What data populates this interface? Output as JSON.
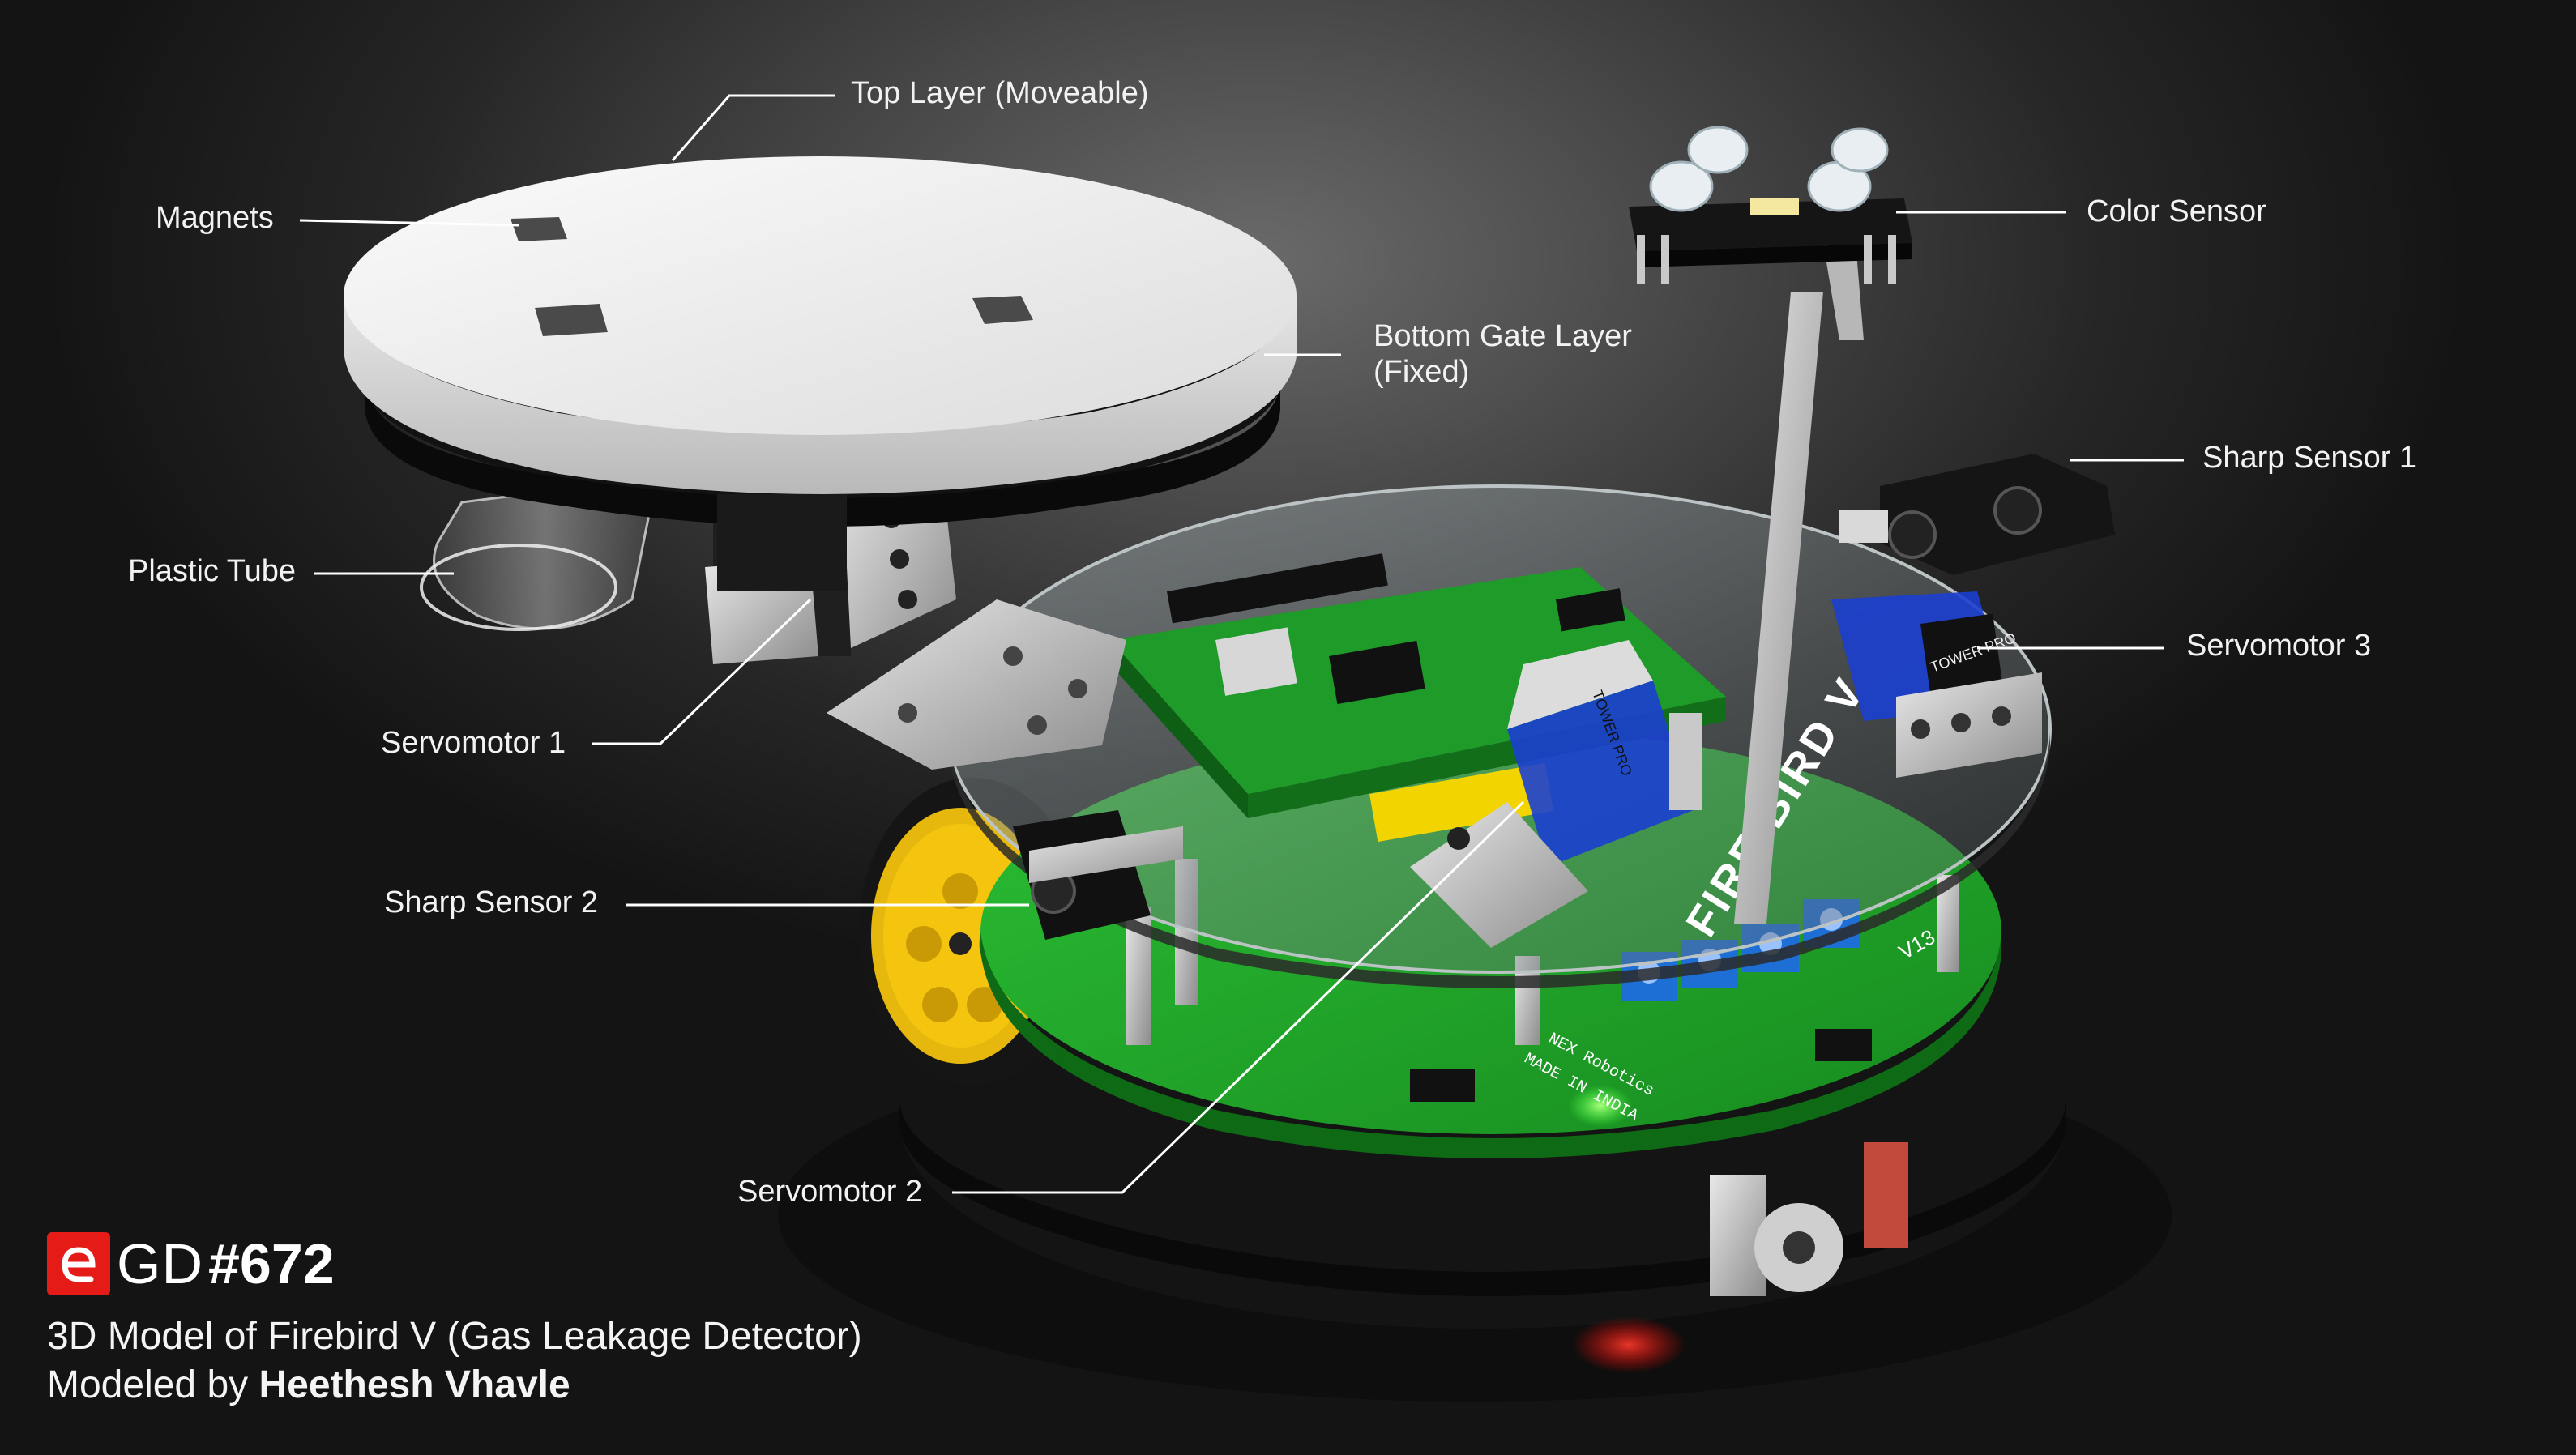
{
  "branding": {
    "logo_letter": "e",
    "prefix": "GD",
    "number": "#672",
    "subtitle": "3D Model of Firebird V (Gas Leakage Detector)",
    "credit_prefix": "Modeled by ",
    "credit_author": "Heethesh Vhavle",
    "accent_color": "#e41b17"
  },
  "callouts": {
    "top_layer": "Top Layer (Moveable)",
    "magnets": "Magnets",
    "color_sensor": "Color Sensor",
    "bottom_gate_line1": "Bottom Gate Layer",
    "bottom_gate_line2": "(Fixed)",
    "sharp_sensor_1": "Sharp Sensor 1",
    "plastic_tube": "Plastic Tube",
    "servomotor_3": "Servomotor 3",
    "servomotor_1": "Servomotor 1",
    "sharp_sensor_2": "Sharp Sensor 2",
    "servomotor_2": "Servomotor 2"
  },
  "board_markings": {
    "fire_bird": "FIRE BIRD V",
    "version": "V13",
    "tower_pro": "TOWER PRO",
    "made_in_india": "MADE IN INDIA",
    "nex_robotics": "NEX Robotics"
  },
  "colors": {
    "pcb_green": "#1fa52a",
    "chassis_black": "#1a1a1a",
    "wheel_yellow": "#f4c40f",
    "servo_blue": "#1b3fd0",
    "terminal_blue": "#1d6fd6",
    "label_text": "#f2f2f2",
    "leader_line": "#ffffff"
  }
}
